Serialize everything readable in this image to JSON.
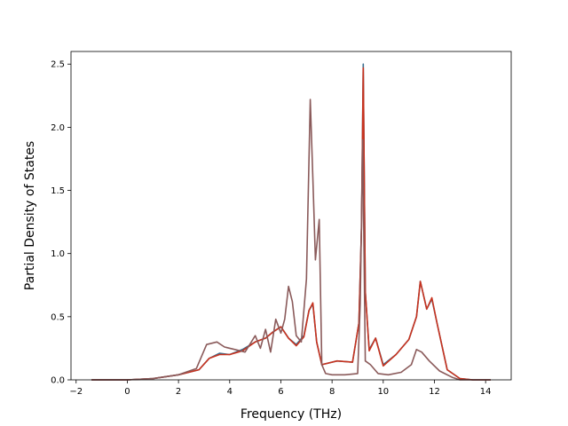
{
  "chart_data": {
    "type": "line",
    "title": "",
    "xlabel": "Frequency (THz)",
    "ylabel": "Partial Density of States",
    "xlim": [
      -2.2,
      15.0
    ],
    "ylim": [
      0.0,
      2.6
    ],
    "xticks": [
      -2,
      0,
      2,
      4,
      6,
      8,
      10,
      12,
      14
    ],
    "yticks": [
      0.0,
      0.5,
      1.0,
      1.5,
      2.0,
      2.5
    ],
    "xtick_labels": [
      "−2",
      "0",
      "2",
      "4",
      "6",
      "8",
      "10",
      "12",
      "14"
    ],
    "ytick_labels": [
      "0.0",
      "0.5",
      "1.0",
      "1.5",
      "2.0",
      "2.5"
    ],
    "grid": false,
    "series": [
      {
        "color": "#3b6f8f",
        "x": [
          -1.4,
          0.0,
          1.0,
          2.0,
          2.8,
          3.2,
          3.6,
          4.0,
          4.5,
          5.0,
          5.4,
          5.7,
          6.0,
          6.3,
          6.6,
          6.9,
          7.1,
          7.25,
          7.4,
          7.6,
          8.2,
          8.8,
          9.05,
          9.15,
          9.22,
          9.3,
          9.45,
          9.7,
          10.0,
          10.5,
          11.0,
          11.3,
          11.45,
          11.7,
          11.9,
          12.1,
          12.5,
          13.0,
          13.5,
          14.2
        ],
        "y": [
          0.0,
          0.0,
          0.01,
          0.04,
          0.08,
          0.17,
          0.21,
          0.2,
          0.24,
          0.3,
          0.33,
          0.38,
          0.42,
          0.33,
          0.28,
          0.35,
          0.55,
          0.6,
          0.3,
          0.12,
          0.15,
          0.14,
          0.45,
          1.2,
          2.5,
          0.7,
          0.24,
          0.33,
          0.12,
          0.2,
          0.32,
          0.5,
          0.78,
          0.56,
          0.64,
          0.45,
          0.08,
          0.01,
          0.0,
          0.0
        ]
      },
      {
        "color": "#c8321e",
        "x": [
          -1.4,
          0.0,
          1.0,
          2.0,
          2.8,
          3.2,
          3.6,
          4.0,
          4.5,
          5.0,
          5.4,
          5.7,
          6.0,
          6.3,
          6.6,
          6.9,
          7.1,
          7.25,
          7.4,
          7.6,
          8.2,
          8.8,
          9.05,
          9.15,
          9.22,
          9.3,
          9.45,
          9.7,
          10.0,
          10.5,
          11.0,
          11.3,
          11.45,
          11.7,
          11.9,
          12.1,
          12.5,
          13.0,
          13.5,
          14.2
        ],
        "y": [
          0.0,
          0.0,
          0.01,
          0.04,
          0.08,
          0.17,
          0.2,
          0.2,
          0.23,
          0.3,
          0.33,
          0.38,
          0.42,
          0.33,
          0.27,
          0.34,
          0.55,
          0.61,
          0.3,
          0.12,
          0.15,
          0.14,
          0.45,
          1.2,
          2.47,
          0.7,
          0.23,
          0.33,
          0.11,
          0.2,
          0.32,
          0.5,
          0.78,
          0.56,
          0.65,
          0.45,
          0.08,
          0.01,
          0.0,
          0.0
        ]
      },
      {
        "color": "#8a5a5a",
        "x": [
          -1.4,
          0.0,
          1.0,
          2.0,
          2.7,
          3.1,
          3.5,
          3.8,
          4.2,
          4.6,
          5.0,
          5.2,
          5.4,
          5.6,
          5.8,
          6.0,
          6.15,
          6.3,
          6.45,
          6.6,
          6.8,
          7.0,
          7.15,
          7.25,
          7.35,
          7.5,
          7.6,
          7.75,
          8.0,
          8.5,
          9.0,
          9.1,
          9.2,
          9.3,
          9.5,
          9.8,
          10.2,
          10.7,
          11.1,
          11.3,
          11.5,
          11.8,
          12.2,
          12.7,
          13.0,
          14.2
        ],
        "y": [
          0.0,
          0.0,
          0.01,
          0.04,
          0.09,
          0.28,
          0.3,
          0.26,
          0.24,
          0.22,
          0.35,
          0.25,
          0.4,
          0.22,
          0.48,
          0.37,
          0.48,
          0.74,
          0.62,
          0.35,
          0.3,
          0.8,
          2.22,
          1.6,
          0.95,
          1.27,
          0.12,
          0.05,
          0.04,
          0.04,
          0.05,
          0.6,
          1.9,
          0.15,
          0.12,
          0.05,
          0.04,
          0.06,
          0.12,
          0.24,
          0.22,
          0.15,
          0.07,
          0.02,
          0.0,
          0.0
        ]
      }
    ]
  }
}
